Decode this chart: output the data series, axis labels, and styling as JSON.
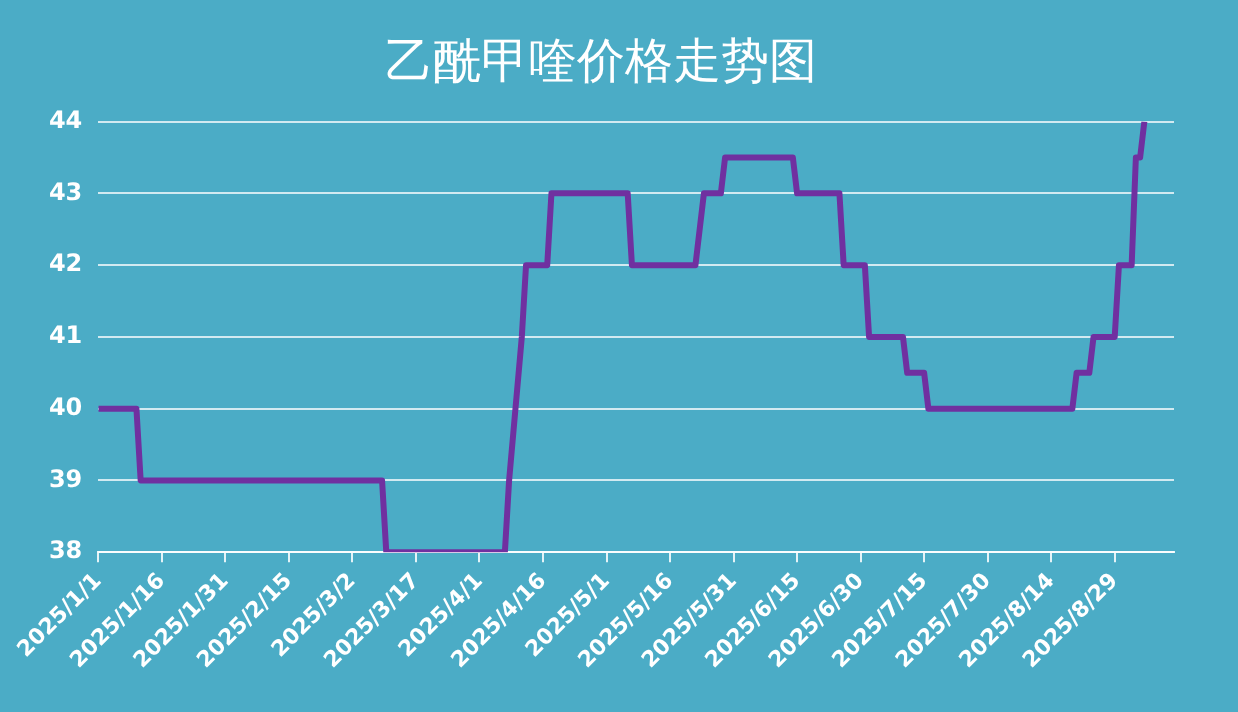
{
  "chart_data": {
    "type": "line",
    "title": "乙酰甲喹价格走势图",
    "series": [
      {
        "color": "#7030a0",
        "x": [
          "2025-01-01",
          "2025-01-10",
          "2025-01-11",
          "2025-03-09",
          "2025-03-10",
          "2025-04-07",
          "2025-04-08",
          "2025-04-11",
          "2025-04-12",
          "2025-04-17",
          "2025-04-18",
          "2025-05-06",
          "2025-05-07",
          "2025-05-22",
          "2025-05-24",
          "2025-05-28",
          "2025-05-29",
          "2025-06-14",
          "2025-06-15",
          "2025-06-25",
          "2025-06-26",
          "2025-07-01",
          "2025-07-02",
          "2025-07-10",
          "2025-07-11",
          "2025-07-15",
          "2025-07-16",
          "2025-08-19",
          "2025-08-20",
          "2025-08-23",
          "2025-08-24",
          "2025-08-29",
          "2025-08-30",
          "2025-09-02",
          "2025-09-03",
          "2025-09-04",
          "2025-09-05"
        ],
        "values": [
          40,
          40,
          39,
          39,
          38,
          38,
          39,
          41,
          42,
          42,
          43,
          43,
          42,
          42,
          43,
          43,
          43.5,
          43.5,
          43,
          43,
          42,
          42,
          41,
          41,
          40.5,
          40.5,
          40,
          40,
          40.5,
          40.5,
          41,
          41,
          42,
          42,
          43.5,
          43.5,
          44
        ]
      }
    ],
    "xlim": [
      "2025-01-01",
      "2025-09-12"
    ],
    "xticks": [
      {
        "value": "2025-01-01",
        "label": "2025/1/1"
      },
      {
        "value": "2025-01-16",
        "label": "2025/1/16"
      },
      {
        "value": "2025-01-31",
        "label": "2025/1/31"
      },
      {
        "value": "2025-02-15",
        "label": "2025/2/15"
      },
      {
        "value": "2025-03-02",
        "label": "2025/3/2"
      },
      {
        "value": "2025-03-17",
        "label": "2025/3/17"
      },
      {
        "value": "2025-04-01",
        "label": "2025/4/1"
      },
      {
        "value": "2025-04-16",
        "label": "2025/4/16"
      },
      {
        "value": "2025-05-01",
        "label": "2025/5/1"
      },
      {
        "value": "2025-05-16",
        "label": "2025/5/16"
      },
      {
        "value": "2025-05-31",
        "label": "2025/5/31"
      },
      {
        "value": "2025-06-15",
        "label": "2025/6/15"
      },
      {
        "value": "2025-06-30",
        "label": "2025/6/30"
      },
      {
        "value": "2025-07-15",
        "label": "2025/7/15"
      },
      {
        "value": "2025-07-30",
        "label": "2025/7/30"
      },
      {
        "value": "2025-08-14",
        "label": "2025/8/14"
      },
      {
        "value": "2025-08-29",
        "label": "2025/8/29"
      }
    ],
    "ylim": [
      38,
      44
    ],
    "yticks": [
      38,
      39,
      40,
      41,
      42,
      43,
      44
    ],
    "grid": "y",
    "legend": false,
    "marker": "none",
    "line_style": "solid"
  }
}
